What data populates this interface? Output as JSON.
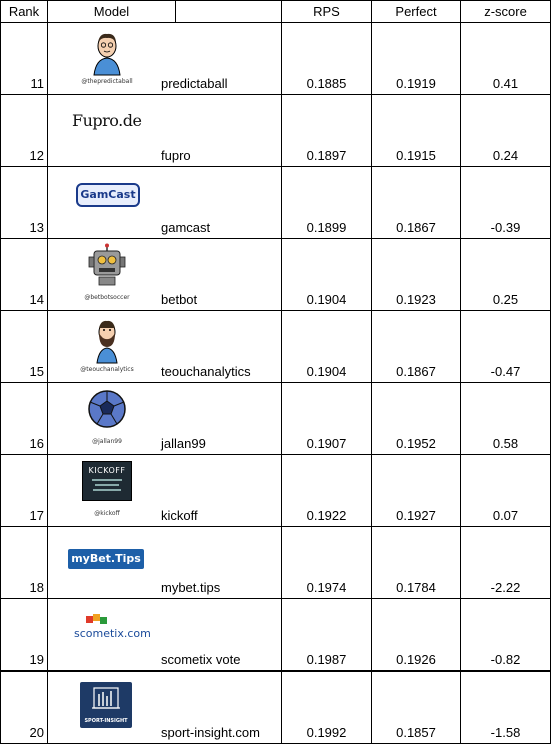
{
  "headers": {
    "rank": "Rank",
    "model": "Model",
    "rps": "RPS",
    "perfect": "Perfect",
    "zscore": "z-score"
  },
  "rows": [
    {
      "rank": "11",
      "name": "predictaball",
      "rps": "0.1885",
      "perfect": "0.1919",
      "z": "0.41",
      "logo_text": "@thepredictaball",
      "logo_icon": "person-avatar-icon"
    },
    {
      "rank": "12",
      "name": "fupro",
      "rps": "0.1897",
      "perfect": "0.1915",
      "z": "0.24",
      "logo_text": "Fupro.de",
      "logo_icon": "fupro-logo"
    },
    {
      "rank": "13",
      "name": "gamcast",
      "rps": "0.1899",
      "perfect": "0.1867",
      "z": "-0.39",
      "logo_text": "GamCast",
      "logo_icon": "gamcast-logo"
    },
    {
      "rank": "14",
      "name": "betbot",
      "rps": "0.1904",
      "perfect": "0.1923",
      "z": "0.25",
      "logo_text": "@betbotsoccer",
      "logo_icon": "robot-icon"
    },
    {
      "rank": "15",
      "name": "teouchanalytics",
      "rps": "0.1904",
      "perfect": "0.1867",
      "z": "-0.47",
      "logo_text": "@teouchanalytics",
      "logo_icon": "bearded-person-icon"
    },
    {
      "rank": "16",
      "name": "jallan99",
      "rps": "0.1907",
      "perfect": "0.1952",
      "z": "0.58",
      "logo_text": "@jallan99",
      "logo_icon": "soccer-ball-icon"
    },
    {
      "rank": "17",
      "name": "kickoff",
      "rps": "0.1922",
      "perfect": "0.1927",
      "z": "0.07",
      "logo_text": "@kickoff",
      "logo_title": "KICKOFF",
      "logo_icon": "kickoff-logo"
    },
    {
      "rank": "18",
      "name": "mybet.tips",
      "rps": "0.1974",
      "perfect": "0.1784",
      "z": "-2.22",
      "logo_text": "myBet.Tips",
      "logo_icon": "mybet-tips-logo"
    },
    {
      "rank": "19",
      "name": "scometix vote",
      "rps": "0.1987",
      "perfect": "0.1926",
      "z": "-0.82",
      "logo_text": "scometix.com",
      "logo_icon": "scometix-logo"
    },
    {
      "rank": "20",
      "name": "sport-insight.com",
      "rps": "0.1992",
      "perfect": "0.1857",
      "z": "-1.58",
      "logo_text": "SPORT-INSIGHT",
      "logo_icon": "sport-insight-logo"
    }
  ]
}
